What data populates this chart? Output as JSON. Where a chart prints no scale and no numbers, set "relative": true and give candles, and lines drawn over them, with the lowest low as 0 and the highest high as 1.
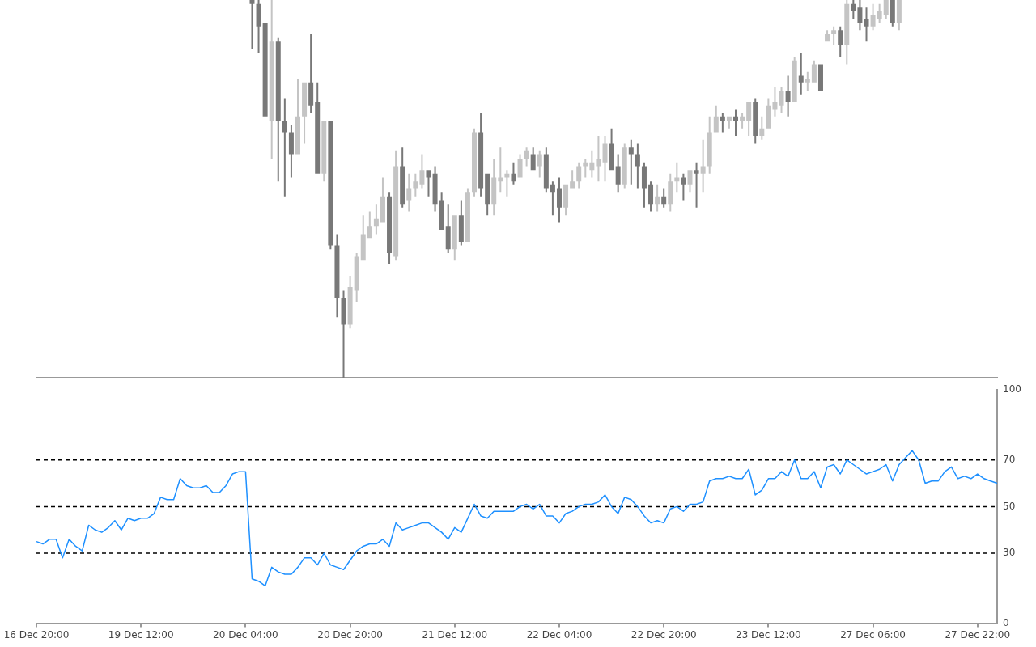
{
  "chart_data": [
    {
      "type": "candlestick",
      "relative": true,
      "tick_labels": false,
      "categories": [
        null,
        null,
        null,
        null,
        null,
        null,
        null,
        null,
        null,
        null,
        null,
        null,
        null,
        null,
        null,
        null,
        null,
        null,
        null,
        null,
        null,
        null,
        null,
        null,
        null,
        null,
        null,
        null,
        null,
        null,
        null,
        null,
        null,
        null,
        null,
        null,
        null,
        null,
        null,
        null,
        null,
        null,
        null,
        null,
        null,
        null,
        null,
        null,
        null,
        null,
        null,
        null,
        null,
        null,
        null,
        null,
        null,
        null,
        null,
        null,
        null,
        null,
        null,
        null,
        null,
        null,
        null,
        null,
        null,
        null,
        null,
        null,
        null,
        null,
        null,
        null,
        null,
        null,
        null,
        null,
        null,
        null,
        null,
        null,
        null,
        null,
        null,
        null,
        null,
        null,
        null,
        null,
        null,
        null,
        null,
        null,
        null,
        null,
        null,
        null,
        null,
        null,
        null,
        null,
        null,
        null,
        null,
        null,
        null,
        null,
        null,
        null,
        null,
        null,
        null,
        null,
        null,
        null,
        null,
        null,
        null,
        null,
        null,
        null,
        null,
        null,
        null,
        null,
        null,
        null,
        null,
        null,
        null,
        null,
        null,
        null,
        null,
        null,
        null,
        null,
        null,
        null,
        null,
        null,
        null,
        null,
        null,
        null
      ],
      "ohlc": [
        null,
        null,
        null,
        null,
        null,
        null,
        null,
        null,
        null,
        null,
        null,
        null,
        null,
        null,
        null,
        null,
        null,
        null,
        null,
        null,
        null,
        null,
        null,
        null,
        null,
        null,
        null,
        null,
        null,
        null,
        null,
        null,
        null,
        [
          1,
          1,
          0.87,
          0.99
        ],
        [
          0.99,
          1,
          0.86,
          0.93
        ],
        [
          0.94,
          0.94,
          0.69,
          0.69
        ],
        [
          0.68,
          1,
          0.58,
          0.89
        ],
        [
          0.89,
          0.9,
          0.52,
          0.68
        ],
        [
          0.68,
          0.74,
          0.48,
          0.65
        ],
        [
          0.65,
          0.67,
          0.53,
          0.59
        ],
        [
          0.59,
          0.79,
          0.59,
          0.69
        ],
        [
          0.69,
          0.78,
          0.62,
          0.78
        ],
        [
          0.78,
          0.91,
          0.7,
          0.72
        ],
        [
          0.73,
          0.78,
          0.54,
          0.54
        ],
        [
          0.54,
          0.68,
          0.52,
          0.68
        ],
        [
          0.68,
          0.68,
          0.34,
          0.35
        ],
        [
          0.35,
          0.38,
          0.16,
          0.21
        ],
        [
          0.21,
          0.23,
          0,
          0.14
        ],
        [
          0.14,
          0.27,
          0.13,
          0.24
        ],
        [
          0.23,
          0.33,
          0.2,
          0.32
        ],
        [
          0.31,
          0.43,
          0.31,
          0.38
        ],
        [
          0.37,
          0.44,
          0.37,
          0.4
        ],
        [
          0.4,
          0.46,
          0.38,
          0.42
        ],
        [
          0.41,
          0.53,
          0.41,
          0.48
        ],
        [
          0.48,
          0.49,
          0.3,
          0.33
        ],
        [
          0.32,
          0.6,
          0.31,
          0.56
        ],
        [
          0.56,
          0.61,
          0.45,
          0.46
        ],
        [
          0.47,
          0.54,
          0.44,
          0.5
        ],
        [
          0.5,
          0.54,
          0.48,
          0.52
        ],
        [
          0.51,
          0.59,
          0.5,
          0.55
        ],
        [
          0.55,
          0.55,
          0.48,
          0.53
        ],
        [
          0.54,
          0.56,
          0.44,
          0.46
        ],
        [
          0.47,
          0.49,
          0.39,
          0.39
        ],
        [
          0.4,
          0.46,
          0.33,
          0.34
        ],
        [
          0.34,
          0.43,
          0.31,
          0.43
        ],
        [
          0.43,
          0.47,
          0.35,
          0.36
        ],
        [
          0.36,
          0.5,
          0.36,
          0.49
        ],
        [
          0.49,
          0.66,
          0.48,
          0.65
        ],
        [
          0.65,
          0.7,
          0.48,
          0.5
        ],
        [
          0.54,
          0.54,
          0.43,
          0.46
        ],
        [
          0.46,
          0.58,
          0.43,
          0.53
        ],
        [
          0.52,
          0.61,
          0.49,
          0.53
        ],
        [
          0.53,
          0.55,
          0.48,
          0.54
        ],
        [
          0.54,
          0.57,
          0.51,
          0.52
        ],
        [
          0.53,
          0.59,
          0.53,
          0.58
        ],
        [
          0.58,
          0.61,
          0.56,
          0.6
        ],
        [
          0.59,
          0.61,
          0.55,
          0.55
        ],
        [
          0.56,
          0.6,
          0.53,
          0.59
        ],
        [
          0.59,
          0.61,
          0.49,
          0.5
        ],
        [
          0.51,
          0.52,
          0.43,
          0.49
        ],
        [
          0.5,
          0.53,
          0.41,
          0.45
        ],
        [
          0.45,
          0.51,
          0.43,
          0.51
        ],
        [
          0.5,
          0.55,
          0.5,
          0.52
        ],
        [
          0.52,
          0.57,
          0.5,
          0.56
        ],
        [
          0.56,
          0.58,
          0.53,
          0.57
        ],
        [
          0.55,
          0.6,
          0.53,
          0.57
        ],
        [
          0.56,
          0.64,
          0.52,
          0.58
        ],
        [
          0.57,
          0.64,
          0.52,
          0.62
        ],
        [
          0.62,
          0.66,
          0.55,
          0.55
        ],
        [
          0.56,
          0.59,
          0.49,
          0.51
        ],
        [
          0.51,
          0.62,
          0.5,
          0.61
        ],
        [
          0.61,
          0.63,
          0.51,
          0.59
        ],
        [
          0.59,
          0.62,
          0.5,
          0.56
        ],
        [
          0.56,
          0.57,
          0.45,
          0.5
        ],
        [
          0.51,
          0.52,
          0.44,
          0.46
        ],
        [
          0.46,
          0.51,
          0.44,
          0.48
        ],
        [
          0.48,
          0.5,
          0.45,
          0.46
        ],
        [
          0.46,
          0.54,
          0.44,
          0.52
        ],
        [
          0.52,
          0.57,
          0.49,
          0.53
        ],
        [
          0.53,
          0.54,
          0.47,
          0.51
        ],
        [
          0.51,
          0.55,
          0.49,
          0.55
        ],
        [
          0.55,
          0.57,
          0.45,
          0.54
        ],
        [
          0.54,
          0.63,
          0.49,
          0.56
        ],
        [
          0.56,
          0.69,
          0.54,
          0.65
        ],
        [
          0.65,
          0.72,
          0.65,
          0.69
        ],
        [
          0.69,
          0.7,
          0.65,
          0.68
        ],
        [
          0.68,
          0.69,
          0.66,
          0.69
        ],
        [
          0.69,
          0.71,
          0.64,
          0.68
        ],
        [
          0.68,
          0.7,
          0.66,
          0.69
        ],
        [
          0.68,
          0.73,
          0.64,
          0.73
        ],
        [
          0.73,
          0.74,
          0.62,
          0.64
        ],
        [
          0.64,
          0.69,
          0.63,
          0.66
        ],
        [
          0.66,
          0.74,
          0.66,
          0.72
        ],
        [
          0.71,
          0.77,
          0.69,
          0.73
        ],
        [
          0.72,
          0.77,
          0.7,
          0.76
        ],
        [
          0.76,
          0.8,
          0.69,
          0.73
        ],
        [
          0.73,
          0.85,
          0.73,
          0.84
        ],
        [
          0.8,
          0.86,
          0.75,
          0.78
        ],
        [
          0.78,
          0.81,
          0.76,
          0.79
        ],
        [
          0.78,
          0.84,
          0.78,
          0.83
        ],
        [
          0.83,
          0.83,
          0.76,
          0.76
        ],
        [
          0.89,
          0.92,
          0.89,
          0.91
        ],
        [
          0.91,
          0.93,
          0.88,
          0.92
        ],
        [
          0.92,
          0.93,
          0.85,
          0.88
        ],
        [
          0.88,
          1,
          0.83,
          0.99
        ],
        [
          0.99,
          1,
          0.95,
          0.97
        ],
        [
          0.98,
          1,
          0.92,
          0.94
        ],
        [
          0.95,
          0.98,
          0.89,
          0.93
        ],
        [
          0.93,
          0.99,
          0.92,
          0.96
        ],
        [
          0.95,
          0.99,
          0.94,
          0.97
        ],
        [
          0.96,
          1,
          0.95,
          1
        ],
        [
          1,
          1,
          0.93,
          0.94
        ],
        [
          0.94,
          1,
          0.92,
          1
        ],
        null,
        null,
        null,
        null,
        null,
        null,
        null,
        null,
        null,
        null,
        null,
        null,
        null,
        null,
        null
      ],
      "colors": [
        null,
        null,
        null,
        null,
        null,
        null,
        null,
        null,
        null,
        null,
        null,
        null,
        null,
        null,
        null,
        null,
        null,
        null,
        null,
        null,
        null,
        null,
        null,
        null,
        null,
        null,
        null,
        null,
        null,
        null,
        null,
        null,
        null,
        "#787878",
        "#787878",
        "#787878",
        "#c4c4c4",
        "#787878",
        "#787878",
        "#787878",
        "#c4c4c4",
        "#c4c4c4",
        "#787878",
        "#787878",
        "#c4c4c4",
        "#787878",
        "#787878",
        "#787878",
        "#c4c4c4",
        "#c4c4c4",
        "#c4c4c4",
        "#c4c4c4",
        "#c4c4c4",
        "#c4c4c4",
        "#787878",
        "#c4c4c4",
        "#787878",
        "#c4c4c4",
        "#c4c4c4",
        "#c4c4c4",
        "#787878",
        "#787878",
        "#787878",
        "#787878",
        "#c4c4c4",
        "#787878",
        "#c4c4c4",
        "#c4c4c4",
        "#787878",
        "#787878",
        "#c4c4c4",
        "#c4c4c4",
        "#c4c4c4",
        "#787878",
        "#c4c4c4",
        "#c4c4c4",
        "#787878",
        "#c4c4c4",
        "#787878",
        "#787878",
        "#787878",
        "#c4c4c4",
        "#c4c4c4",
        "#c4c4c4",
        "#c4c4c4",
        "#c4c4c4",
        "#c4c4c4",
        "#c4c4c4",
        "#787878",
        "#787878",
        "#c4c4c4",
        "#787878",
        "#787878",
        "#787878",
        "#787878",
        "#c4c4c4",
        "#787878",
        "#c4c4c4",
        "#c4c4c4",
        "#787878",
        "#c4c4c4",
        "#787878",
        "#c4c4c4",
        "#c4c4c4",
        "#c4c4c4",
        "#787878",
        "#c4c4c4",
        "#787878",
        "#c4c4c4",
        "#c4c4c4",
        "#787878",
        "#c4c4c4",
        "#c4c4c4",
        "#c4c4c4",
        "#c4c4c4",
        "#787878",
        "#c4c4c4",
        "#787878",
        "#c4c4c4",
        "#c4c4c4",
        "#787878",
        "#c4c4c4",
        "#c4c4c4",
        "#787878",
        "#c4c4c4",
        "#787878",
        "#787878",
        "#787878",
        "#c4c4c4",
        "#c4c4c4",
        "#c4c4c4",
        "#787878",
        "#c4c4c4",
        null,
        null,
        null,
        null,
        null,
        null,
        null,
        null,
        null,
        null,
        null,
        null,
        null,
        null,
        null
      ]
    },
    {
      "type": "line",
      "marker": "none",
      "categories": [
        "16 Dec 20:00",
        null,
        null,
        null,
        null,
        null,
        null,
        null,
        null,
        null,
        null,
        null,
        null,
        null,
        null,
        null,
        "19 Dec 12:00",
        null,
        null,
        null,
        null,
        null,
        null,
        null,
        null,
        null,
        null,
        null,
        null,
        null,
        null,
        null,
        "20 Dec 04:00",
        null,
        null,
        null,
        null,
        null,
        null,
        null,
        null,
        null,
        null,
        null,
        null,
        null,
        null,
        null,
        "20 Dec 20:00",
        null,
        null,
        null,
        null,
        null,
        null,
        null,
        null,
        null,
        null,
        null,
        null,
        null,
        null,
        null,
        "21 Dec 12:00",
        null,
        null,
        null,
        null,
        null,
        null,
        null,
        null,
        null,
        null,
        null,
        null,
        null,
        null,
        null,
        "22 Dec 04:00",
        null,
        null,
        null,
        null,
        null,
        null,
        null,
        null,
        null,
        null,
        null,
        null,
        null,
        null,
        null,
        "22 Dec 20:00",
        null,
        null,
        null,
        null,
        null,
        null,
        null,
        null,
        null,
        null,
        null,
        null,
        null,
        null,
        null,
        "23 Dec 12:00",
        null,
        null,
        null,
        null,
        null,
        null,
        null,
        null,
        null,
        null,
        null,
        null,
        null,
        null,
        null,
        "27 Dec 06:00",
        null,
        null,
        null,
        null,
        null,
        null,
        null,
        null,
        null,
        null,
        null,
        null,
        null,
        null,
        null,
        "27 Dec 22:00",
        null,
        null,
        null
      ],
      "series": [
        {
          "color": "#1e90ff",
          "values": [
            35,
            34,
            36,
            36,
            28,
            36,
            33,
            31,
            42,
            40,
            39,
            41,
            44,
            40,
            45,
            44,
            45,
            45,
            47,
            54,
            53,
            53,
            62,
            59,
            58,
            58,
            59,
            56,
            56,
            59,
            64,
            65,
            65,
            19,
            18,
            16,
            24,
            22,
            21,
            21,
            24,
            28,
            28,
            25,
            30,
            25,
            24,
            23,
            27,
            31,
            33,
            34,
            34,
            36,
            33,
            43,
            40,
            41,
            42,
            43,
            43,
            41,
            39,
            36,
            41,
            39,
            45,
            51,
            46,
            45,
            48,
            48,
            48,
            48,
            50,
            51,
            49,
            51,
            46,
            46,
            43,
            47,
            48,
            50,
            51,
            51,
            52,
            55,
            50,
            47,
            54,
            53,
            50,
            46,
            43,
            44,
            43,
            49,
            50,
            48,
            51,
            51,
            52,
            61,
            62,
            62,
            63,
            62,
            62,
            66,
            55,
            57,
            62,
            62,
            65,
            63,
            70,
            62,
            62,
            65,
            58,
            67,
            68,
            64,
            70,
            68,
            66,
            64,
            65,
            66,
            68,
            61,
            68,
            71,
            74,
            70,
            60,
            61,
            61,
            65,
            67,
            62,
            63,
            62,
            64,
            62,
            61,
            60
          ]
        }
      ],
      "ylim": [
        0,
        100
      ],
      "yticks": [
        0,
        30,
        50,
        70,
        100
      ],
      "ref_lines": [
        {
          "axis": "y",
          "value": 70,
          "color": "#000000",
          "line_style": "dashed"
        },
        {
          "axis": "y",
          "value": 50,
          "color": "#000000",
          "line_style": "dashed"
        },
        {
          "axis": "y",
          "value": 30,
          "color": "#000000",
          "line_style": "dashed"
        }
      ]
    }
  ]
}
